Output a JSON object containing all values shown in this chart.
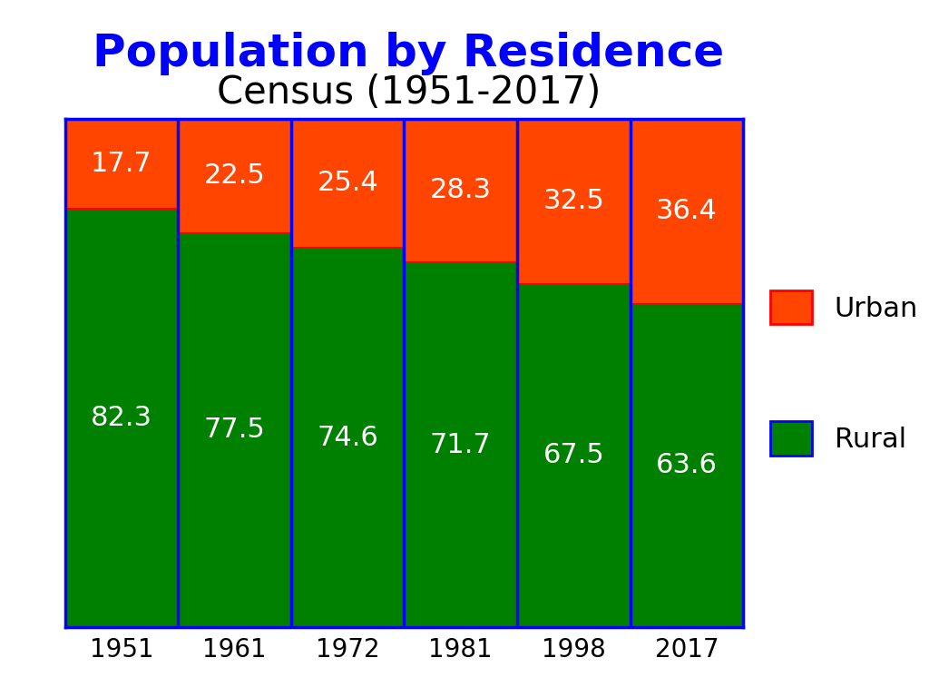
{
  "title_line1": "Population by Residence",
  "title_line2": "Census (1951-2017)",
  "title_color": "#0000FF",
  "subtitle_color": "#000000",
  "years": [
    "1951",
    "1961",
    "1972",
    "1981",
    "1998",
    "2017"
  ],
  "urban": [
    17.7,
    22.5,
    25.4,
    28.3,
    32.5,
    36.4
  ],
  "rural": [
    82.3,
    77.5,
    74.6,
    71.7,
    67.5,
    63.6
  ],
  "urban_color": "#FF4500",
  "rural_color": "#008000",
  "bar_edge_color": "#FF0000",
  "bar_linewidth": 1.5,
  "divider_color": "#0000FF",
  "divider_linewidth": 2.5,
  "text_color": "white",
  "text_fontsize": 22,
  "legend_urban_face": "#FF4500",
  "legend_urban_edge": "#FF0000",
  "legend_rural_face": "#008000",
  "legend_rural_edge": "#0000FF",
  "legend_fontsize": 22,
  "background_color": "white",
  "chart_bg_color": "white",
  "ylim": [
    0,
    100
  ],
  "title_fontsize": 36,
  "subtitle_fontsize": 30,
  "xtick_fontsize": 20
}
